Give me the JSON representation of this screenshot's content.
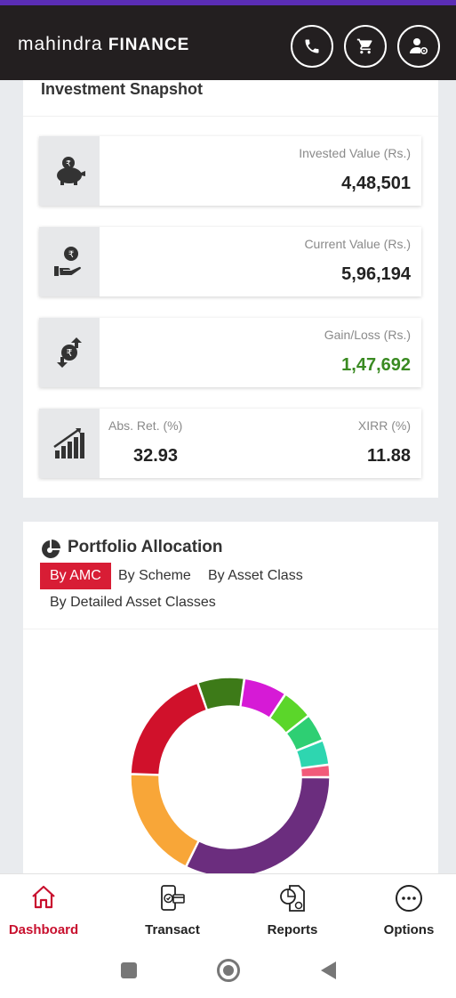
{
  "header": {
    "brand_light": "mahindra",
    "brand_bold": "FINANCE",
    "icons": [
      "phone-icon",
      "cart-icon",
      "user-settings-icon"
    ]
  },
  "snapshot": {
    "title": "Investment Snapshot",
    "invested_label": "Invested Value (Rs.)",
    "invested_value": "4,48,501",
    "current_label": "Current Value (Rs.)",
    "current_value": "5,96,194",
    "gain_label": "Gain/Loss (Rs.)",
    "gain_value": "1,47,692",
    "absret_label": "Abs. Ret. (%)",
    "absret_value": "32.93",
    "xirr_label": "XIRR (%)",
    "xirr_value": "11.88",
    "gain_color": "#3a8a22"
  },
  "portfolio": {
    "title": "Portfolio Allocation",
    "tabs": [
      "By AMC",
      "By Scheme",
      "By Asset Class",
      "By Detailed Asset Classes"
    ],
    "active_tab": "By AMC",
    "accent": "#d81d35"
  },
  "chart_data": {
    "type": "pie",
    "start_angle_deg": 90,
    "slices": [
      {
        "value": 32,
        "color": "#6b2d7e"
      },
      {
        "value": 18,
        "color": "#f8a638"
      },
      {
        "value": 19,
        "color": "#d0112b"
      },
      {
        "value": 7.5,
        "color": "#3d7a18"
      },
      {
        "value": 7,
        "color": "#d61ad6"
      },
      {
        "value": 5,
        "color": "#5bd62a"
      },
      {
        "value": 4.5,
        "color": "#2ecf73"
      },
      {
        "value": 4,
        "color": "#2ed6b0"
      },
      {
        "value": 2,
        "color": "#f25a7a"
      }
    ]
  },
  "nav": {
    "items": [
      {
        "label": "Dashboard",
        "icon": "home-icon"
      },
      {
        "label": "Transact",
        "icon": "transact-icon"
      },
      {
        "label": "Reports",
        "icon": "reports-icon"
      },
      {
        "label": "Options",
        "icon": "options-icon"
      }
    ],
    "active": "Dashboard",
    "active_color": "#c8102e"
  },
  "system_nav": [
    "recents-icon",
    "home-button-icon",
    "back-icon"
  ]
}
